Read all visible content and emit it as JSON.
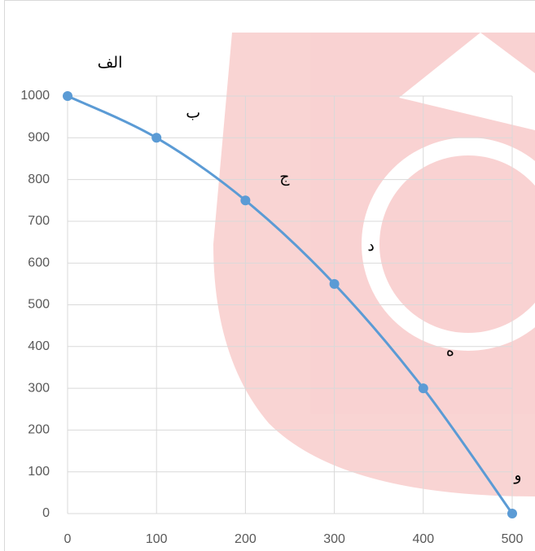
{
  "chart_data": {
    "type": "line",
    "x": [
      0,
      100,
      200,
      300,
      400,
      500
    ],
    "series": [
      {
        "color": "#5b9bd5",
        "values": [
          1000,
          900,
          750,
          550,
          300,
          0
        ]
      }
    ],
    "point_labels": [
      "الف",
      "ب",
      "ج",
      "د",
      "ه",
      "و"
    ],
    "xlim": [
      0,
      500
    ],
    "xticks": [
      0,
      100,
      200,
      300,
      400,
      500
    ],
    "ylim": [
      0,
      1000
    ],
    "yticks": [
      0,
      100,
      200,
      300,
      400,
      500,
      600,
      700,
      800,
      900,
      1000
    ],
    "grid": true,
    "smooth": true
  }
}
